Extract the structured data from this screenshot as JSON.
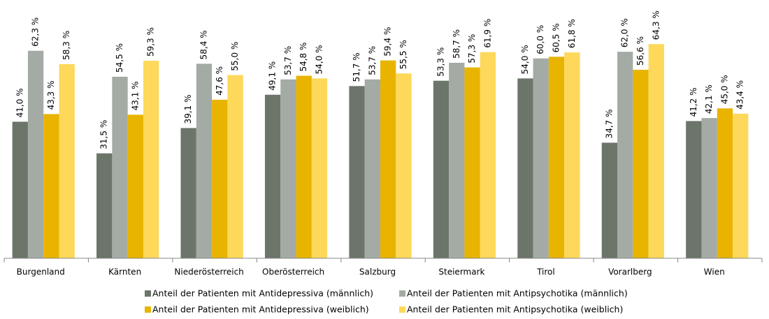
{
  "chart_data": {
    "type": "bar",
    "categories": [
      "Burgenland",
      "Kärnten",
      "Niederösterreich",
      "Oberösterreich",
      "Salzburg",
      "Steiermark",
      "Tirol",
      "Vorarlberg",
      "Wien"
    ],
    "series": [
      {
        "name": "Anteil der Patienten mit Antidepressiva (männlich)",
        "color": "#6b7569",
        "values": [
          41.0,
          31.5,
          39.1,
          49.1,
          51.7,
          53.3,
          54.0,
          34.7,
          41.2
        ],
        "value_labels": [
          "41,0 %",
          "31,5 %",
          "39,1 %",
          "49,1 %",
          "51,7 %",
          "53,3 %",
          "54,0 %",
          "34,7 %",
          "41,2 %"
        ]
      },
      {
        "name": "Anteil der Patienten mit Antipsychotika (männlich)",
        "color": "#a3aba4",
        "values": [
          62.3,
          54.5,
          58.4,
          53.7,
          53.7,
          58.7,
          60.0,
          62.0,
          42.1
        ],
        "value_labels": [
          "62,3 %",
          "54,5 %",
          "58,4 %",
          "53,7 %",
          "53,7 %",
          "58,7 %",
          "60,0 %",
          "62,0 %",
          "42,1 %"
        ]
      },
      {
        "name": "Anteil der Patienten mit Antidepressiva (weiblich)",
        "color": "#e8b400",
        "values": [
          43.3,
          43.1,
          47.6,
          54.8,
          59.4,
          57.3,
          60.5,
          56.6,
          45.0
        ],
        "value_labels": [
          "43,3 %",
          "43,1 %",
          "47,6 %",
          "54,8 %",
          "59,4 %",
          "57,3 %",
          "60,5 %",
          "56,6 %",
          "45,0 %"
        ]
      },
      {
        "name": "Anteil der Patienten mit Antipsychotika (weiblich)",
        "color": "#fdd85a",
        "values": [
          58.3,
          59.3,
          55.0,
          54.0,
          55.5,
          61.9,
          61.8,
          64.3,
          43.4
        ],
        "value_labels": [
          "58,3 %",
          "59,3 %",
          "55,0 %",
          "54,0 %",
          "55,5 %",
          "61,9 %",
          "61,8 %",
          "64,3 %",
          "43,4 %"
        ]
      }
    ],
    "ylim": [
      0,
      70
    ],
    "legend": "bottom"
  }
}
